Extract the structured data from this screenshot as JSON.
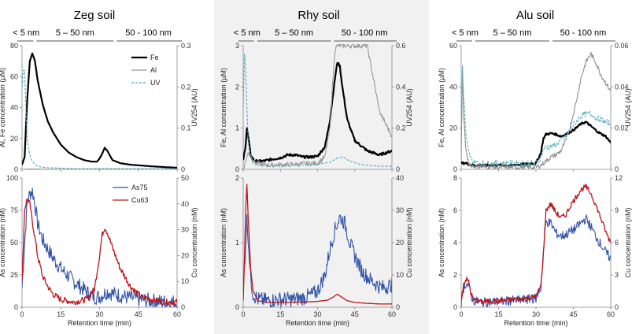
{
  "figure": {
    "xlabel": "Retention time (min)",
    "size_fractions": [
      "< 5 nm",
      "5 – 50 nm",
      "50 - 100 nm"
    ],
    "colors": {
      "Fe": "#000000",
      "Al": "#999999",
      "UV": "#4aa3b8",
      "As75": "#3253a8",
      "Cu63": "#c0141b",
      "Al_alu": "#8e8e8e",
      "UV_alu": "#5aaec0"
    }
  },
  "chart_data": [
    {
      "panel": "Zeg soil",
      "position": "top",
      "type": "line",
      "title": "Zeg soil",
      "ylabel": "Al, Fe concentration (µM)",
      "y2label": "UV254 (AU)",
      "xlim": [
        0,
        60
      ],
      "ylim": [
        0,
        80
      ],
      "y2lim": [
        0,
        0.3
      ],
      "xticks": [
        "0",
        "15",
        "30",
        "45",
        "60"
      ],
      "yticks": [
        "0",
        "20",
        "40",
        "60",
        "80"
      ],
      "y2ticks": [
        "0",
        "0.1",
        "0.2",
        "0.3"
      ],
      "legend": [
        "Fe",
        "Al",
        "UV"
      ],
      "series": [
        {
          "name": "Fe",
          "axis": "y",
          "x": [
            0,
            1,
            2,
            3,
            4,
            5,
            6,
            8,
            10,
            12,
            15,
            18,
            21,
            24,
            27,
            29,
            30,
            31,
            32,
            33,
            35,
            38,
            42,
            46,
            50,
            55,
            60
          ],
          "values": [
            3,
            8,
            45,
            70,
            75,
            70,
            58,
            42,
            31,
            24,
            16,
            11,
            8,
            6,
            5,
            5,
            7,
            10,
            14,
            12,
            6,
            4,
            3,
            2.5,
            2,
            1.5,
            1
          ]
        },
        {
          "name": "Al",
          "axis": "y",
          "x": [
            0,
            2,
            4,
            6,
            10,
            20,
            30,
            40,
            50,
            60
          ],
          "values": [
            0,
            0.2,
            0.3,
            0.2,
            0.1,
            0.1,
            0.1,
            0.1,
            0.1,
            0.1
          ]
        },
        {
          "name": "UV",
          "axis": "y2",
          "x": [
            0,
            0.5,
            1,
            1.5,
            2,
            3,
            4,
            5,
            6,
            8,
            10,
            15,
            20,
            30,
            40,
            50,
            60
          ],
          "values": [
            0.2,
            0.24,
            0.24,
            0.15,
            0.07,
            0.035,
            0.02,
            0.012,
            0.008,
            0.005,
            0.004,
            0.003,
            0.002,
            0.002,
            0.002,
            0.002,
            0.002
          ]
        }
      ]
    },
    {
      "panel": "Zeg soil",
      "position": "bottom",
      "type": "line",
      "ylabel": "As concentration (nM)",
      "y2label": "Cu concentration (nM)",
      "xlim": [
        0,
        60
      ],
      "ylim": [
        0,
        100
      ],
      "y2lim": [
        0,
        50
      ],
      "xticks": [
        "0",
        "15",
        "30",
        "45",
        "60"
      ],
      "yticks": [
        "0",
        "25",
        "50",
        "75",
        "100"
      ],
      "y2ticks": [
        "0",
        "10",
        "20",
        "30",
        "40",
        "50"
      ],
      "legend": [
        "As75",
        "Cu63"
      ],
      "series": [
        {
          "name": "As75",
          "axis": "y",
          "noise": 6,
          "x": [
            0,
            1,
            2,
            3,
            4,
            5,
            6,
            8,
            10,
            12,
            15,
            20,
            25,
            28,
            30,
            33,
            36,
            40,
            45,
            50,
            55,
            60
          ],
          "values": [
            15,
            50,
            80,
            88,
            90,
            80,
            65,
            52,
            45,
            38,
            30,
            20,
            12,
            8,
            8,
            12,
            10,
            8,
            6,
            5,
            4,
            4
          ]
        },
        {
          "name": "Cu63",
          "axis": "y2",
          "noise": 1.2,
          "x": [
            0,
            1,
            2,
            3,
            4,
            5,
            6,
            8,
            10,
            12,
            15,
            20,
            25,
            28,
            30,
            31,
            32,
            33,
            35,
            38,
            42,
            46,
            50,
            55,
            60
          ],
          "values": [
            10,
            38,
            42,
            40,
            33,
            27,
            20,
            12,
            8,
            5,
            3,
            2,
            3,
            7,
            20,
            28,
            31,
            29,
            23,
            15,
            8,
            4,
            3,
            2,
            2
          ]
        }
      ]
    },
    {
      "panel": "Rhy soil",
      "position": "top",
      "type": "line",
      "title": "Rhy soil",
      "ylabel": "Fe, Al concentration (µM)",
      "y2label": "UV254 (AU)",
      "xlim": [
        0,
        60
      ],
      "ylim": [
        0,
        3
      ],
      "y2lim": [
        0,
        0.6
      ],
      "xticks": [
        "0",
        "15",
        "30",
        "45",
        "60"
      ],
      "yticks": [
        "0",
        "1",
        "2",
        "3"
      ],
      "y2ticks": [
        "0",
        "0.2",
        "0.4",
        "0.6"
      ],
      "legend": [],
      "series": [
        {
          "name": "Fe",
          "axis": "y",
          "noise": 0.03,
          "x": [
            0,
            1,
            1.5,
            2,
            3,
            4,
            5,
            8,
            12,
            15,
            18,
            21,
            24,
            27,
            30,
            33,
            35,
            37,
            38,
            39,
            40,
            42,
            45,
            50,
            55,
            60
          ],
          "values": [
            0.2,
            0.6,
            1.0,
            0.8,
            0.35,
            0.25,
            0.2,
            0.2,
            0.25,
            0.28,
            0.35,
            0.35,
            0.3,
            0.3,
            0.32,
            0.55,
            1.2,
            2.2,
            2.6,
            2.5,
            2.0,
            1.2,
            0.7,
            0.45,
            0.35,
            0.45
          ]
        },
        {
          "name": "Al",
          "axis": "y",
          "noise": 0.06,
          "x": [
            0,
            2,
            5,
            10,
            20,
            30,
            33,
            35,
            36,
            37,
            38,
            40,
            45,
            50,
            55,
            60
          ],
          "values": [
            0,
            0.4,
            0.15,
            0.1,
            0.12,
            0.15,
            0.3,
            1.0,
            2.0,
            2.9,
            3.0,
            3.0,
            3.0,
            3.0,
            1.4,
            0.8
          ]
        },
        {
          "name": "UV",
          "axis": "y2",
          "x": [
            0,
            0.5,
            1,
            1.5,
            2,
            3,
            4,
            6,
            10,
            20,
            30,
            35,
            38,
            40,
            43,
            47,
            50,
            55,
            60
          ],
          "values": [
            0.3,
            0.56,
            0.5,
            0.3,
            0.14,
            0.06,
            0.03,
            0.02,
            0.02,
            0.02,
            0.025,
            0.035,
            0.055,
            0.06,
            0.04,
            0.025,
            0.02,
            0.015,
            0.015
          ]
        }
      ]
    },
    {
      "panel": "Rhy soil",
      "position": "bottom",
      "type": "line",
      "ylabel": "As concentration (nM)",
      "y2label": "Cu concentration (nM)",
      "xlim": [
        0,
        60
      ],
      "ylim": [
        0,
        2
      ],
      "y2lim": [
        0,
        40
      ],
      "xticks": [
        "0",
        "15",
        "30",
        "45",
        "60"
      ],
      "yticks": [
        "0",
        "1",
        "2"
      ],
      "y2ticks": [
        "0",
        "10",
        "20",
        "30",
        "40"
      ],
      "legend": [],
      "series": [
        {
          "name": "As75",
          "axis": "y",
          "noise": 0.12,
          "x": [
            0,
            1,
            1.5,
            2,
            3,
            4,
            6,
            10,
            15,
            20,
            25,
            28,
            30,
            33,
            35,
            37,
            39,
            41,
            43,
            45,
            48,
            52,
            56,
            60
          ],
          "values": [
            0.2,
            1.0,
            1.35,
            1.1,
            0.45,
            0.2,
            0.12,
            0.1,
            0.12,
            0.12,
            0.15,
            0.2,
            0.25,
            0.5,
            0.9,
            1.2,
            1.4,
            1.3,
            1.0,
            0.8,
            0.55,
            0.4,
            0.3,
            0.35
          ]
        },
        {
          "name": "Cu63",
          "axis": "y2",
          "x": [
            0,
            0.5,
            1,
            1.5,
            2,
            3,
            4,
            6,
            10,
            20,
            30,
            34,
            36,
            38,
            40,
            42,
            45,
            50,
            55,
            60
          ],
          "values": [
            2,
            15,
            30,
            38,
            28,
            12,
            5,
            2,
            1.5,
            1.5,
            1.8,
            2.2,
            3,
            4,
            3,
            2,
            1.5,
            1.2,
            1,
            1
          ]
        }
      ]
    },
    {
      "panel": "Alu soil",
      "position": "top",
      "type": "line",
      "title": "Alu soil",
      "ylabel": "Fe, Al concentration (µM)",
      "y2label": "UV254 (AU)",
      "xlim": [
        0,
        60
      ],
      "ylim": [
        0,
        60
      ],
      "y2lim": [
        0,
        0.06
      ],
      "xticks": [
        "0",
        "15",
        "30",
        "45",
        "60"
      ],
      "yticks": [
        "0",
        "20",
        "40",
        "60"
      ],
      "y2ticks": [
        "0",
        "0.02",
        "0.04",
        "0.06"
      ],
      "legend": [],
      "series": [
        {
          "name": "Fe",
          "axis": "y",
          "noise": 0.5,
          "x": [
            0,
            2,
            4,
            8,
            15,
            20,
            25,
            30,
            32,
            33,
            34,
            36,
            38,
            40,
            42,
            45,
            48,
            50,
            52,
            55,
            58,
            60
          ],
          "values": [
            3,
            3,
            2,
            2,
            2,
            2,
            2.5,
            3,
            8,
            15,
            17,
            17.5,
            17,
            16,
            17,
            19,
            22,
            23,
            21,
            18,
            16,
            13
          ]
        },
        {
          "name": "Al",
          "axis": "y",
          "noise": 1.2,
          "x": [
            0,
            0.5,
            1,
            2,
            3,
            5,
            10,
            20,
            30,
            32,
            34,
            36,
            38,
            40,
            42,
            44,
            46,
            48,
            50,
            52,
            54,
            56,
            58,
            60
          ],
          "values": [
            5,
            50,
            25,
            8,
            3,
            1.5,
            1,
            1,
            1,
            2,
            4,
            6,
            7,
            9,
            14,
            22,
            32,
            44,
            52,
            56,
            52,
            46,
            42,
            38
          ]
        },
        {
          "name": "UV",
          "axis": "y2",
          "noise": 0.0015,
          "x": [
            0,
            0.5,
            1,
            2,
            3,
            4,
            6,
            10,
            20,
            30,
            32,
            33,
            34,
            36,
            38,
            40,
            42,
            44,
            46,
            48,
            50,
            52,
            54,
            56,
            58,
            60
          ],
          "values": [
            0.01,
            0.05,
            0.035,
            0.015,
            0.008,
            0.005,
            0.003,
            0.003,
            0.003,
            0.003,
            0.006,
            0.01,
            0.011,
            0.011,
            0.012,
            0.014,
            0.016,
            0.02,
            0.023,
            0.026,
            0.027,
            0.027,
            0.025,
            0.024,
            0.023,
            0.022
          ]
        }
      ]
    },
    {
      "panel": "Alu soil",
      "position": "bottom",
      "type": "line",
      "ylabel": "As concentration (nM)",
      "y2label": "Cu concentration (nM)",
      "xlim": [
        0,
        60
      ],
      "ylim": [
        0,
        8
      ],
      "y2lim": [
        0,
        12
      ],
      "xticks": [
        "0",
        "15",
        "30",
        "45",
        "60"
      ],
      "yticks": [
        "0",
        "2",
        "4",
        "6",
        "8"
      ],
      "y2ticks": [
        "0",
        "3",
        "6",
        "9",
        "12"
      ],
      "legend": [],
      "series": [
        {
          "name": "As75",
          "axis": "y",
          "noise": 0.3,
          "x": [
            0,
            1,
            2,
            3,
            4,
            5,
            8,
            15,
            20,
            25,
            30,
            32,
            33,
            34,
            36,
            38,
            40,
            42,
            44,
            46,
            48,
            50,
            52,
            54,
            56,
            58,
            60
          ],
          "values": [
            0.3,
            1.2,
            1.5,
            1.3,
            0.7,
            0.4,
            0.3,
            0.35,
            0.4,
            0.45,
            0.55,
            1.2,
            3.5,
            5.3,
            5.2,
            4.6,
            4.4,
            4.5,
            4.7,
            4.9,
            5.2,
            5.5,
            5.0,
            4.4,
            3.9,
            3.4,
            3.0
          ]
        },
        {
          "name": "Cu63",
          "axis": "y2",
          "noise": 0.25,
          "x": [
            0,
            1,
            2,
            3,
            4,
            5,
            8,
            15,
            20,
            25,
            30,
            32,
            33,
            34,
            36,
            38,
            40,
            42,
            44,
            46,
            48,
            50,
            52,
            54,
            56,
            58,
            60
          ],
          "values": [
            0.5,
            2.2,
            2.6,
            2.4,
            1.2,
            0.7,
            0.5,
            0.6,
            0.7,
            0.8,
            1.0,
            2,
            5,
            9,
            9.6,
            8.8,
            8.3,
            8.6,
            9.5,
            10.2,
            10.9,
            11.2,
            10.6,
            9.5,
            8.3,
            7,
            6
          ]
        }
      ]
    }
  ]
}
